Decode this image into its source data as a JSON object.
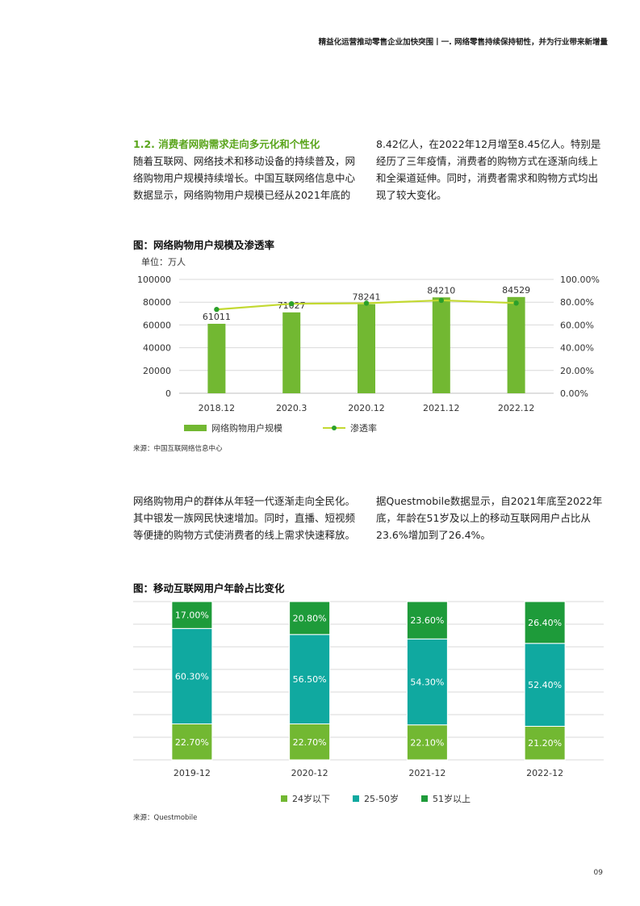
{
  "header": {
    "text": "精益化运营推动零售企业加快突围丨一. 网络零售持续保持韧性，并为行业带来新增量"
  },
  "section1": {
    "title": "1.2. 消费者网购需求走向多元化和个性化",
    "left_text": "随着互联网、网络技术和移动设备的持续普及，网络购物用户规模持续增长。中国互联网络信息中心数据显示，网络购物用户规模已经从2021年底的",
    "right_text": "8.42亿人，在2022年12月增至8.45亿人。特别是经历了三年疫情，消费者的购物方式在逐渐向线上和全渠道延伸。同时，消费者需求和购物方式均出现了较大变化。"
  },
  "figure1": {
    "title": "图：网络购物用户规模及渗透率",
    "unit": "单位：万人",
    "source": "来源：中国互联网络信息中心",
    "legend": {
      "bar": "网络购物用户规模",
      "line": "渗透率"
    }
  },
  "section2": {
    "left_text": "网络购物用户的群体从年轻一代逐渐走向全民化。其中银发一族网民快速增加。同时，直播、短视频等便捷的购物方式使消费者的线上需求快速释放。",
    "right_text": "据Questmobile数据显示，自2021年底至2022年底，年龄在51岁及以上的移动互联网用户占比从23.6%增加到了26.4%。"
  },
  "figure2": {
    "title": "图：移动互联网用户年龄占比变化",
    "source": "来源：Questmobile",
    "legend": [
      "24岁以下",
      "25-50岁",
      "51岁以上"
    ]
  },
  "page_number": "09",
  "colors": {
    "bar_green": "#72b832",
    "line_green": "#c3d931",
    "dot_green": "#2aa02a",
    "light_green": "#72b832",
    "teal": "#10a9a0",
    "dark_green": "#1e9b3a"
  },
  "chart_data": [
    {
      "type": "bar",
      "categories": [
        "2018.12",
        "2020.3",
        "2020.12",
        "2021.12",
        "2022.12"
      ],
      "series": [
        {
          "name": "网络购物用户规模",
          "values": [
            61011,
            71027,
            78241,
            84210,
            84529
          ],
          "axis": "left"
        },
        {
          "name": "渗透率",
          "type": "line",
          "values": [
            73.6,
            78.6,
            79.1,
            81.6,
            79.2
          ],
          "axis": "right"
        }
      ],
      "ylim": [
        0,
        100000
      ],
      "yticks": [
        "0",
        "20000",
        "40000",
        "60000",
        "80000",
        "100000"
      ],
      "y2lim": [
        0,
        100
      ],
      "y2ticks": [
        "0.00%",
        "20.00%",
        "40.00%",
        "60.00%",
        "80.00%",
        "100.00%"
      ],
      "grid": true,
      "legend": "bottom"
    },
    {
      "type": "bar",
      "stacked": true,
      "percent": true,
      "categories": [
        "2019-12",
        "2020-12",
        "2021-12",
        "2022-12"
      ],
      "series": [
        {
          "name": "24岁以下",
          "values": [
            22.7,
            22.7,
            22.1,
            21.2
          ]
        },
        {
          "name": "25-50岁",
          "values": [
            60.3,
            56.5,
            54.3,
            52.4
          ]
        },
        {
          "name": "51岁以上",
          "values": [
            17.0,
            20.8,
            23.6,
            26.4
          ]
        }
      ],
      "grid": true,
      "legend": "bottom"
    }
  ]
}
